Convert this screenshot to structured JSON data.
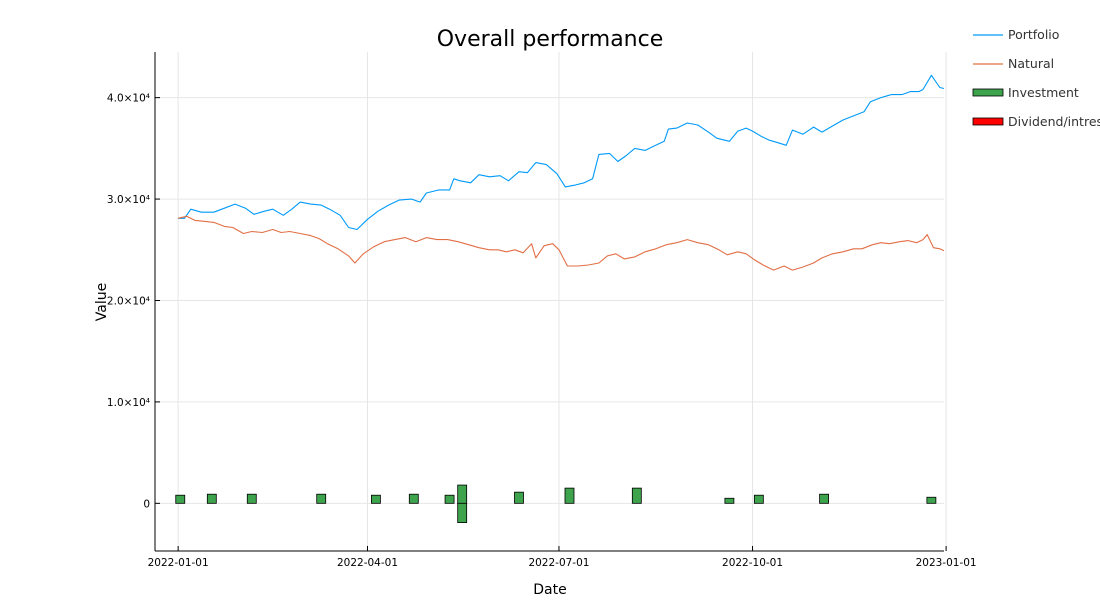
{
  "chart_data": {
    "type": "line",
    "title": "Overall performance",
    "xlabel": "Date",
    "ylabel": "Value",
    "xlim": [
      "2021-12-21",
      "2022-12-31"
    ],
    "ylim": [
      -4700,
      44500
    ],
    "x_ticks": [
      "2022-01-01",
      "2022-04-01",
      "2022-07-01",
      "2022-10-01",
      "2023-01-01"
    ],
    "y_ticks": [
      {
        "value": 0,
        "label": "0"
      },
      {
        "value": 10000,
        "label": "1.0×10⁴"
      },
      {
        "value": 20000,
        "label": "2.0×10⁴"
      },
      {
        "value": 30000,
        "label": "3.0×10⁴"
      },
      {
        "value": 40000,
        "label": "4.0×10⁴"
      }
    ],
    "grid": true,
    "legend_position": "top-right, outside plot",
    "series": [
      {
        "name": "Portfolio",
        "kind": "line",
        "color": "#009AFA",
        "points": [
          [
            "2022-01-01",
            28100
          ],
          [
            "2022-01-04",
            28100
          ],
          [
            "2022-01-07",
            29000
          ],
          [
            "2022-01-12",
            28700
          ],
          [
            "2022-01-18",
            28700
          ],
          [
            "2022-01-23",
            29100
          ],
          [
            "2022-01-28",
            29500
          ],
          [
            "2022-02-02",
            29100
          ],
          [
            "2022-02-06",
            28500
          ],
          [
            "2022-02-11",
            28800
          ],
          [
            "2022-02-15",
            29000
          ],
          [
            "2022-02-20",
            28400
          ],
          [
            "2022-02-24",
            29000
          ],
          [
            "2022-02-28",
            29700
          ],
          [
            "2022-03-05",
            29500
          ],
          [
            "2022-03-10",
            29400
          ],
          [
            "2022-03-14",
            29000
          ],
          [
            "2022-03-19",
            28400
          ],
          [
            "2022-03-23",
            27200
          ],
          [
            "2022-03-27",
            27000
          ],
          [
            "2022-04-01",
            28000
          ],
          [
            "2022-04-06",
            28800
          ],
          [
            "2022-04-11",
            29400
          ],
          [
            "2022-04-16",
            29900
          ],
          [
            "2022-04-22",
            30000
          ],
          [
            "2022-04-26",
            29700
          ],
          [
            "2022-04-29",
            30600
          ],
          [
            "2022-05-05",
            30900
          ],
          [
            "2022-05-10",
            30900
          ],
          [
            "2022-05-12",
            32000
          ],
          [
            "2022-05-15",
            31800
          ],
          [
            "2022-05-20",
            31600
          ],
          [
            "2022-05-24",
            32400
          ],
          [
            "2022-05-29",
            32200
          ],
          [
            "2022-06-03",
            32300
          ],
          [
            "2022-06-07",
            31800
          ],
          [
            "2022-06-12",
            32700
          ],
          [
            "2022-06-16",
            32600
          ],
          [
            "2022-06-20",
            33600
          ],
          [
            "2022-06-25",
            33400
          ],
          [
            "2022-06-30",
            32500
          ],
          [
            "2022-07-04",
            31200
          ],
          [
            "2022-07-09",
            31400
          ],
          [
            "2022-07-13",
            31600
          ],
          [
            "2022-07-17",
            32000
          ],
          [
            "2022-07-20",
            34400
          ],
          [
            "2022-07-25",
            34500
          ],
          [
            "2022-07-29",
            33700
          ],
          [
            "2022-08-02",
            34300
          ],
          [
            "2022-08-06",
            35000
          ],
          [
            "2022-08-11",
            34800
          ],
          [
            "2022-08-15",
            35200
          ],
          [
            "2022-08-20",
            35700
          ],
          [
            "2022-08-22",
            36900
          ],
          [
            "2022-08-26",
            37000
          ],
          [
            "2022-08-31",
            37500
          ],
          [
            "2022-09-05",
            37300
          ],
          [
            "2022-09-10",
            36600
          ],
          [
            "2022-09-14",
            36000
          ],
          [
            "2022-09-20",
            35700
          ],
          [
            "2022-09-24",
            36700
          ],
          [
            "2022-09-28",
            37000
          ],
          [
            "2022-10-01",
            36700
          ],
          [
            "2022-10-05",
            36200
          ],
          [
            "2022-10-09",
            35800
          ],
          [
            "2022-10-14",
            35500
          ],
          [
            "2022-10-17",
            35300
          ],
          [
            "2022-10-20",
            36800
          ],
          [
            "2022-10-25",
            36400
          ],
          [
            "2022-10-30",
            37100
          ],
          [
            "2022-11-03",
            36600
          ],
          [
            "2022-11-08",
            37200
          ],
          [
            "2022-11-13",
            37800
          ],
          [
            "2022-11-18",
            38200
          ],
          [
            "2022-11-23",
            38600
          ],
          [
            "2022-11-26",
            39600
          ],
          [
            "2022-12-01",
            40000
          ],
          [
            "2022-12-06",
            40300
          ],
          [
            "2022-12-11",
            40300
          ],
          [
            "2022-12-15",
            40600
          ],
          [
            "2022-12-19",
            40600
          ],
          [
            "2022-12-21",
            40800
          ],
          [
            "2022-12-25",
            42200
          ],
          [
            "2022-12-29",
            41000
          ],
          [
            "2022-12-31",
            40900
          ]
        ]
      },
      {
        "name": "Natural",
        "kind": "line",
        "color": "#E26F46",
        "points": [
          [
            "2022-01-01",
            28100
          ],
          [
            "2022-01-05",
            28300
          ],
          [
            "2022-01-09",
            27900
          ],
          [
            "2022-01-14",
            27800
          ],
          [
            "2022-01-18",
            27700
          ],
          [
            "2022-01-23",
            27300
          ],
          [
            "2022-01-27",
            27200
          ],
          [
            "2022-02-01",
            26600
          ],
          [
            "2022-02-05",
            26800
          ],
          [
            "2022-02-10",
            26700
          ],
          [
            "2022-02-15",
            27000
          ],
          [
            "2022-02-19",
            26700
          ],
          [
            "2022-02-23",
            26800
          ],
          [
            "2022-02-28",
            26600
          ],
          [
            "2022-03-05",
            26400
          ],
          [
            "2022-03-09",
            26100
          ],
          [
            "2022-03-13",
            25600
          ],
          [
            "2022-03-18",
            25100
          ],
          [
            "2022-03-23",
            24400
          ],
          [
            "2022-03-26",
            23700
          ],
          [
            "2022-03-30",
            24600
          ],
          [
            "2022-04-04",
            25300
          ],
          [
            "2022-04-09",
            25800
          ],
          [
            "2022-04-14",
            26000
          ],
          [
            "2022-04-19",
            26200
          ],
          [
            "2022-04-24",
            25800
          ],
          [
            "2022-04-29",
            26200
          ],
          [
            "2022-05-04",
            26000
          ],
          [
            "2022-05-09",
            26000
          ],
          [
            "2022-05-14",
            25800
          ],
          [
            "2022-05-19",
            25500
          ],
          [
            "2022-05-24",
            25200
          ],
          [
            "2022-05-29",
            25000
          ],
          [
            "2022-06-02",
            25000
          ],
          [
            "2022-06-06",
            24800
          ],
          [
            "2022-06-10",
            25000
          ],
          [
            "2022-06-14",
            24700
          ],
          [
            "2022-06-18",
            25600
          ],
          [
            "2022-06-20",
            24200
          ],
          [
            "2022-06-24",
            25400
          ],
          [
            "2022-06-28",
            25600
          ],
          [
            "2022-07-01",
            25000
          ],
          [
            "2022-07-05",
            23400
          ],
          [
            "2022-07-10",
            23400
          ],
          [
            "2022-07-15",
            23500
          ],
          [
            "2022-07-20",
            23700
          ],
          [
            "2022-07-24",
            24400
          ],
          [
            "2022-07-28",
            24600
          ],
          [
            "2022-08-01",
            24100
          ],
          [
            "2022-08-06",
            24300
          ],
          [
            "2022-08-11",
            24800
          ],
          [
            "2022-08-16",
            25100
          ],
          [
            "2022-08-21",
            25500
          ],
          [
            "2022-08-26",
            25700
          ],
          [
            "2022-08-31",
            26000
          ],
          [
            "2022-09-05",
            25700
          ],
          [
            "2022-09-10",
            25500
          ],
          [
            "2022-09-15",
            25000
          ],
          [
            "2022-09-19",
            24500
          ],
          [
            "2022-09-24",
            24800
          ],
          [
            "2022-09-28",
            24600
          ],
          [
            "2022-10-02",
            24000
          ],
          [
            "2022-10-06",
            23500
          ],
          [
            "2022-10-11",
            23000
          ],
          [
            "2022-10-16",
            23400
          ],
          [
            "2022-10-20",
            23000
          ],
          [
            "2022-10-25",
            23300
          ],
          [
            "2022-10-30",
            23700
          ],
          [
            "2022-11-03",
            24200
          ],
          [
            "2022-11-08",
            24600
          ],
          [
            "2022-11-13",
            24800
          ],
          [
            "2022-11-18",
            25100
          ],
          [
            "2022-11-22",
            25100
          ],
          [
            "2022-11-27",
            25500
          ],
          [
            "2022-12-01",
            25700
          ],
          [
            "2022-12-05",
            25600
          ],
          [
            "2022-12-10",
            25800
          ],
          [
            "2022-12-14",
            25900
          ],
          [
            "2022-12-18",
            25700
          ],
          [
            "2022-12-21",
            26000
          ],
          [
            "2022-12-23",
            26500
          ],
          [
            "2022-12-26",
            25200
          ],
          [
            "2022-12-29",
            25100
          ],
          [
            "2022-12-31",
            24900
          ]
        ]
      },
      {
        "name": "Investment",
        "kind": "bar",
        "color": "#3DA44D",
        "bars": [
          [
            "2022-01-02",
            800
          ],
          [
            "2022-01-17",
            900
          ],
          [
            "2022-02-05",
            900
          ],
          [
            "2022-03-10",
            900
          ],
          [
            "2022-04-05",
            800
          ],
          [
            "2022-04-23",
            900
          ],
          [
            "2022-05-10",
            800
          ],
          [
            "2022-05-16",
            1800
          ],
          [
            "2022-05-16",
            -1900
          ],
          [
            "2022-06-12",
            1100
          ],
          [
            "2022-07-06",
            1500
          ],
          [
            "2022-08-07",
            1500
          ],
          [
            "2022-09-20",
            500
          ],
          [
            "2022-10-04",
            800
          ],
          [
            "2022-11-04",
            900
          ],
          [
            "2022-12-25",
            600
          ]
        ]
      },
      {
        "name": "Dividend/intres",
        "kind": "bar",
        "color": "#FF0000",
        "bars": []
      }
    ]
  }
}
